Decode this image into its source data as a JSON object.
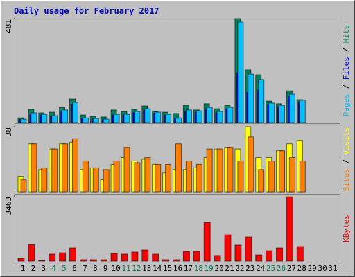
{
  "chart_data": [
    {
      "type": "bar",
      "title": "Daily usage for February 2017",
      "legend_separator": " / ",
      "ylim": [
        0,
        481
      ],
      "yticks": [
        481
      ],
      "series": [
        {
          "name": "Hits",
          "color": "#00805c",
          "values": [
            22,
            61,
            45,
            48,
            70,
            109,
            35,
            29,
            26,
            58,
            51,
            61,
            77,
            51,
            48,
            42,
            80,
            58,
            87,
            64,
            80,
            481,
            244,
            221,
            99,
            87,
            147,
            106,
            0,
            0,
            0
          ]
        },
        {
          "name": "Files",
          "color": "#0000ff",
          "values": [
            14,
            40,
            34,
            28,
            52,
            85,
            19,
            16,
            14,
            34,
            34,
            46,
            58,
            43,
            34,
            19,
            52,
            48,
            64,
            45,
            64,
            230,
            140,
            150,
            84,
            74,
            122,
            96,
            0,
            0,
            0
          ]
        },
        {
          "name": "Pages",
          "color": "#00c0ff",
          "values": [
            16,
            45,
            38,
            32,
            58,
            93,
            22,
            19,
            16,
            38,
            38,
            51,
            64,
            48,
            38,
            22,
            58,
            54,
            70,
            51,
            70,
            465,
            224,
            199,
            90,
            80,
            131,
            103,
            0,
            0,
            0
          ]
        }
      ]
    },
    {
      "type": "bar",
      "legend_separator": " / ",
      "ylim": [
        0,
        38
      ],
      "yticks": [
        38
      ],
      "series": [
        {
          "name": "Visits",
          "color": "#ffff00",
          "values": [
            9,
            28,
            13,
            25,
            28,
            29,
            13,
            14,
            7,
            16,
            20,
            18,
            19,
            16,
            11,
            13,
            13,
            14,
            20,
            25,
            26,
            25,
            38,
            20,
            20,
            24,
            28,
            30,
            0,
            0,
            0
          ]
        },
        {
          "name": "Sites",
          "color": "#ff8000",
          "values": [
            7,
            28,
            14,
            25,
            28,
            31,
            18,
            14,
            13,
            18,
            26,
            17,
            20,
            16,
            16,
            28,
            18,
            16,
            25,
            25,
            26,
            18,
            32,
            13,
            18,
            24,
            20,
            18,
            0,
            0,
            0
          ]
        }
      ]
    },
    {
      "type": "bar",
      "ylim": [
        0,
        3463
      ],
      "yticks": [
        3463
      ],
      "categories": [
        "1",
        "2",
        "3",
        "4",
        "5",
        "6",
        "7",
        "8",
        "9",
        "10",
        "11",
        "12",
        "13",
        "14",
        "15",
        "16",
        "17",
        "18",
        "19",
        "20",
        "21",
        "22",
        "23",
        "24",
        "25",
        "26",
        "27",
        "28",
        "29",
        "30",
        "31"
      ],
      "weekend_color": "#00805c",
      "weekend_days": [
        "4",
        "5",
        "11",
        "12",
        "18",
        "19",
        "25",
        "26"
      ],
      "series": [
        {
          "name": "KBytes",
          "color": "#ff0000",
          "values": [
            150,
            880,
            40,
            370,
            440,
            700,
            75,
            75,
            75,
            400,
            370,
            480,
            590,
            370,
            75,
            75,
            515,
            515,
            2060,
            300,
            1400,
            850,
            1290,
            330,
            550,
            700,
            3420,
            775,
            0,
            0,
            0
          ]
        }
      ]
    }
  ]
}
